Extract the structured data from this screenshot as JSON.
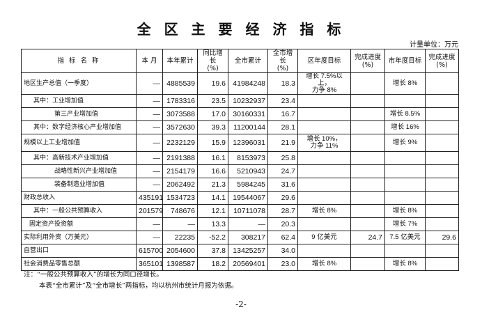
{
  "header": {
    "title": "全 区 主 要 经 济 指 标",
    "unit": "计量单位：万元"
  },
  "table": {
    "columns": [
      "指 标 名 称",
      "本 月",
      "本年累计",
      "同比增长\n(%)",
      "全市累计",
      "全市增长\n(%)",
      "区年度目标",
      "完成进度\n(%)",
      "市年度目标",
      "完成进度\n(%)"
    ],
    "rows": [
      [
        "地区生产总值（一季度）",
        "—",
        "4885539",
        "19.6",
        "41984248",
        "18.3",
        "增长 7.5%以上，\n力争 8%",
        null,
        "增长 8%",
        null
      ],
      [
        "其中：工业增加值",
        "—",
        "1783316",
        "23.5",
        "10232937",
        "23.4",
        null,
        null,
        null,
        null
      ],
      [
        "第三产业增加值",
        "—",
        "3073588",
        "17.0",
        "30160331",
        "16.7",
        null,
        null,
        "增长 8.5%",
        null
      ],
      [
        "其中：数字经济核心产业增加值",
        "—",
        "3572630",
        "39.3",
        "11200144",
        "28.1",
        null,
        null,
        "增长 16%",
        null
      ],
      [
        "规模以上工业增加值",
        "—",
        "2232129",
        "15.9",
        "12396031",
        "21.9",
        "增长 10%，\n力争 11%",
        null,
        "增长 9%",
        null
      ],
      [
        "其中：高新技术产业增加值",
        "—",
        "2191388",
        "16.1",
        "8153973",
        "25.8",
        null,
        null,
        null,
        null
      ],
      [
        "战略性新兴产业增加值",
        "—",
        "2154179",
        "16.6",
        "5210943",
        "24.7",
        null,
        null,
        null,
        null
      ],
      [
        "装备制造业增加值",
        "—",
        "2062492",
        "21.3",
        "5984245",
        "31.6",
        null,
        null,
        null,
        null
      ],
      [
        "财政总收入",
        "435191",
        "1534723",
        "14.1",
        "19544067",
        "29.6",
        null,
        null,
        null,
        null
      ],
      [
        "其中：一般公共预算收入",
        "201579",
        "748676",
        "12.1",
        "10711078",
        "28.7",
        "增长 8%",
        null,
        "增长 8%",
        null
      ],
      [
        "固定资产投资额",
        "—",
        "—",
        "13.3",
        "—",
        "20.3",
        null,
        null,
        "增长 7%",
        null
      ],
      [
        "实际利用外资（万美元）",
        "—",
        "22235",
        "-52.2",
        "308217",
        "62.4",
        "9 亿美元",
        "24.7",
        "7.5 亿美元",
        "29.6"
      ],
      [
        "自营出口",
        "615700",
        "2054600",
        "37.8",
        "13425257",
        "34.0",
        null,
        null,
        null,
        null
      ],
      [
        "社会消费品零售总额",
        "365101",
        "1398587",
        "18.2",
        "20569401",
        "23.0",
        "增长 8%",
        null,
        "增长 8%",
        null
      ]
    ]
  },
  "notes": [
    "注：“一般公共预算收入”的增长为同口径增长。",
    "本表“全市累计”及“全市增长”两指标，均以杭州市统计月报为依据。"
  ],
  "page_number": "-2-"
}
